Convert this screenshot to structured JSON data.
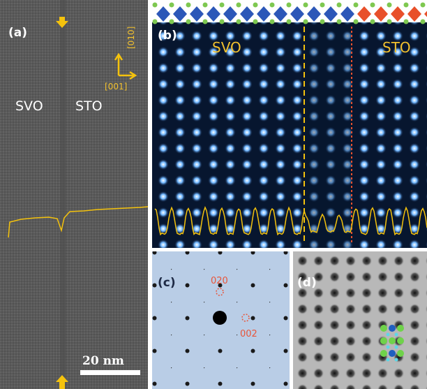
{
  "panels": {
    "a": {
      "label": "(a)",
      "direction_up": "[010]",
      "direction_right": "[001]",
      "left_material": "SVO",
      "right_material": "STO",
      "scale_bar": "20 nm"
    },
    "b": {
      "label": "(b)",
      "left_material": "SVO",
      "right_material": "STO"
    },
    "c": {
      "label": "(c)",
      "spot_1": "020",
      "spot_2": "002"
    },
    "d": {
      "label": "(d)"
    }
  }
}
